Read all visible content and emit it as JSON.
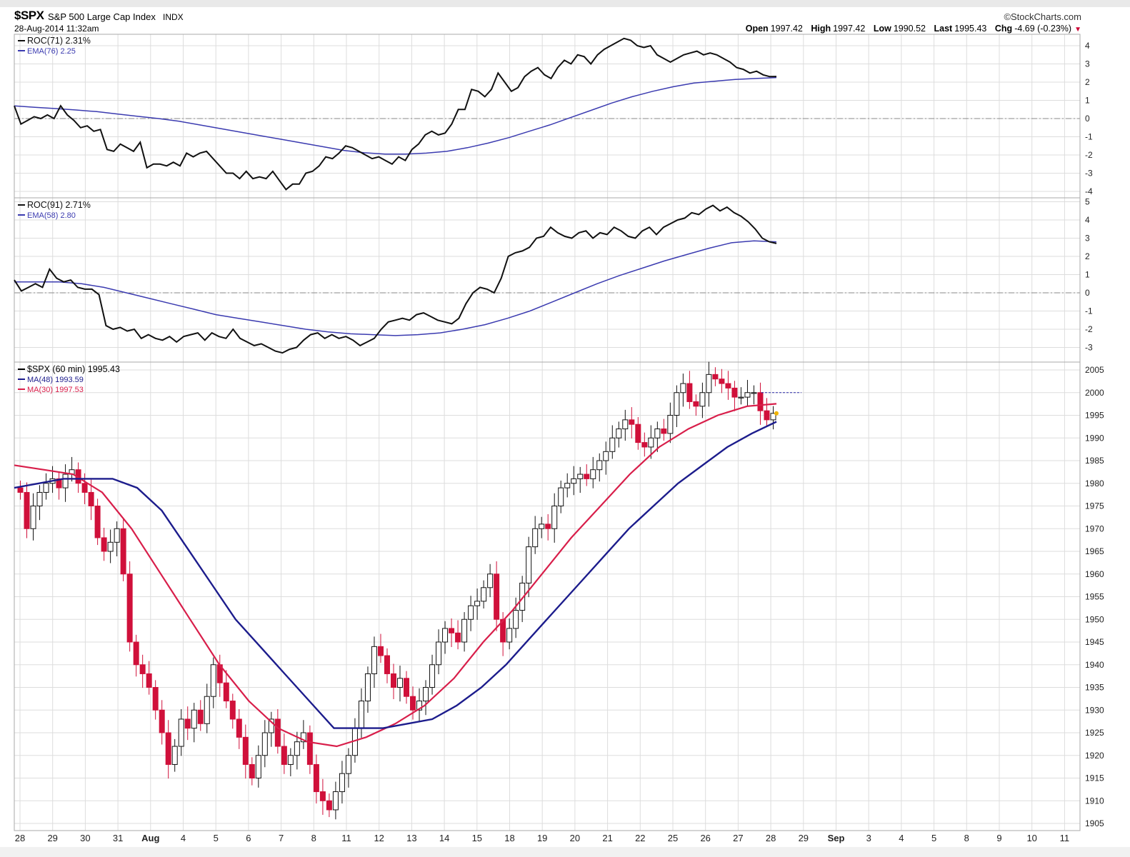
{
  "header": {
    "symbol": "$SPX",
    "name": "S&P 500 Large Cap Index",
    "exchange": "INDX",
    "datetime": "28-Aug-2014 11:32am",
    "brand": "©StockCharts.com",
    "quote": {
      "open_label": "Open",
      "open": "1997.42",
      "high_label": "High",
      "high": "1997.42",
      "low_label": "Low",
      "low": "1990.52",
      "last_label": "Last",
      "last": "1995.43",
      "chg_label": "Chg",
      "chg": "-4.69 (-0.23%)"
    }
  },
  "colors": {
    "roc_line": "#111111",
    "ema_line": "#3b3bb0",
    "ma48": "#1c1c8c",
    "ma30": "#d81e4a",
    "up_candle": "#ffffff",
    "down_candle": "#d0103a",
    "grid": "#dddddd"
  },
  "chart_data": [
    {
      "type": "line",
      "panel": "roc71",
      "legend": [
        {
          "name": "ROC(71) 2.31%",
          "color": "#111111"
        },
        {
          "name": "EMA(76) 2.25",
          "color": "#3b3bb0"
        }
      ],
      "y_ticks": [
        "4",
        "3",
        "2",
        "1",
        "0",
        "-1",
        "-2",
        "-3",
        "-4"
      ],
      "ylim": [
        -4,
        4
      ],
      "series": [
        {
          "name": "ROC(71)",
          "values": [
            0.7,
            -0.3,
            -0.1,
            0.1,
            0.0,
            0.2,
            0.0,
            0.7,
            0.2,
            -0.1,
            -0.5,
            -0.4,
            -0.7,
            -0.6,
            -1.7,
            -1.8,
            -1.4,
            -1.6,
            -1.8,
            -1.3,
            -2.7,
            -2.5,
            -2.5,
            -2.6,
            -2.4,
            -2.6,
            -1.9,
            -2.1,
            -1.9,
            -1.8,
            -2.2,
            -2.6,
            -3.0,
            -3.0,
            -3.3,
            -2.9,
            -3.3,
            -3.2,
            -3.3,
            -2.9,
            -3.4,
            -3.9,
            -3.6,
            -3.6,
            -3.0,
            -2.9,
            -2.6,
            -2.1,
            -2.2,
            -1.9,
            -1.5,
            -1.6,
            -1.8,
            -2.0,
            -2.2,
            -2.1,
            -2.3,
            -2.5,
            -2.1,
            -2.3,
            -1.7,
            -1.4,
            -0.9,
            -0.7,
            -0.9,
            -0.8,
            -0.3,
            0.5,
            0.5,
            1.6,
            1.5,
            1.2,
            1.6,
            2.5,
            2.0,
            1.5,
            1.7,
            2.3,
            2.6,
            2.8,
            2.4,
            2.2,
            2.8,
            3.2,
            3.0,
            3.5,
            3.4,
            3.0,
            3.5,
            3.8,
            4.0,
            4.2,
            4.4,
            4.3,
            4.0,
            3.9,
            4.0,
            3.5,
            3.3,
            3.1,
            3.3,
            3.5,
            3.6,
            3.7,
            3.5,
            3.6,
            3.5,
            3.3,
            3.1,
            2.8,
            2.7,
            2.5,
            2.6,
            2.4,
            2.3,
            2.31
          ]
        },
        {
          "name": "EMA(76)",
          "values": [
            0.7,
            0.62,
            0.55,
            0.47,
            0.38,
            0.25,
            0.12,
            0.0,
            -0.15,
            -0.35,
            -0.55,
            -0.75,
            -0.95,
            -1.15,
            -1.35,
            -1.55,
            -1.75,
            -1.88,
            -1.95,
            -1.95,
            -1.9,
            -1.8,
            -1.6,
            -1.35,
            -1.05,
            -0.7,
            -0.35,
            0.05,
            0.45,
            0.85,
            1.2,
            1.5,
            1.75,
            1.95,
            2.05,
            2.15,
            2.2,
            2.25
          ]
        }
      ]
    },
    {
      "type": "line",
      "panel": "roc91",
      "legend": [
        {
          "name": "ROC(91) 2.71%",
          "color": "#111111"
        },
        {
          "name": "EMA(58) 2.80",
          "color": "#3b3bb0"
        }
      ],
      "y_ticks": [
        "5",
        "4",
        "3",
        "2",
        "1",
        "0",
        "-1",
        "-2",
        "-3"
      ],
      "ylim": [
        -3,
        5
      ],
      "series": [
        {
          "name": "ROC(91)",
          "values": [
            0.7,
            0.1,
            0.3,
            0.5,
            0.3,
            1.3,
            0.8,
            0.6,
            0.7,
            0.3,
            0.2,
            0.2,
            -0.1,
            -1.8,
            -2.0,
            -1.9,
            -2.1,
            -2.0,
            -2.5,
            -2.3,
            -2.5,
            -2.6,
            -2.4,
            -2.7,
            -2.4,
            -2.3,
            -2.2,
            -2.6,
            -2.2,
            -2.4,
            -2.5,
            -2.0,
            -2.5,
            -2.7,
            -2.9,
            -2.8,
            -3.0,
            -3.2,
            -3.3,
            -3.1,
            -3.0,
            -2.6,
            -2.3,
            -2.2,
            -2.5,
            -2.3,
            -2.5,
            -2.4,
            -2.6,
            -2.9,
            -2.7,
            -2.5,
            -2.0,
            -1.6,
            -1.5,
            -1.4,
            -1.5,
            -1.2,
            -1.1,
            -1.3,
            -1.5,
            -1.6,
            -1.7,
            -1.4,
            -0.6,
            0.0,
            0.3,
            0.2,
            0.0,
            0.8,
            2.0,
            2.2,
            2.3,
            2.5,
            3.0,
            3.1,
            3.6,
            3.3,
            3.1,
            3.0,
            3.3,
            3.4,
            3.0,
            3.3,
            3.2,
            3.6,
            3.4,
            3.1,
            3.0,
            3.4,
            3.6,
            3.2,
            3.6,
            3.8,
            4.0,
            4.1,
            4.4,
            4.3,
            4.6,
            4.8,
            4.5,
            4.7,
            4.4,
            4.2,
            3.9,
            3.5,
            3.0,
            2.8,
            2.71
          ]
        },
        {
          "name": "EMA(58)",
          "values": [
            0.6,
            0.6,
            0.6,
            0.5,
            0.3,
            0.0,
            -0.3,
            -0.6,
            -0.9,
            -1.2,
            -1.4,
            -1.6,
            -1.8,
            -2.0,
            -2.15,
            -2.25,
            -2.3,
            -2.35,
            -2.3,
            -2.2,
            -2.0,
            -1.75,
            -1.4,
            -1.0,
            -0.5,
            -0.0,
            0.5,
            0.95,
            1.35,
            1.75,
            2.1,
            2.45,
            2.75,
            2.85,
            2.8
          ]
        }
      ]
    },
    {
      "type": "candlestick",
      "panel": "price",
      "legend": [
        {
          "name": "$SPX (60 min) 1995.43",
          "color": "#000000"
        },
        {
          "name": "MA(48) 1993.59",
          "color": "#1c1c8c"
        },
        {
          "name": "MA(30) 1997.53",
          "color": "#d81e4a"
        }
      ],
      "y_ticks": [
        "2005",
        "2000",
        "1995",
        "1990",
        "1985",
        "1980",
        "1975",
        "1970",
        "1965",
        "1960",
        "1955",
        "1950",
        "1945",
        "1940",
        "1935",
        "1930",
        "1925",
        "1920",
        "1915",
        "1910",
        "1905"
      ],
      "ylim": [
        1905,
        2005
      ],
      "x_ticks": [
        "28",
        "29",
        "30",
        "31",
        "Aug",
        "4",
        "5",
        "6",
        "7",
        "8",
        "11",
        "12",
        "13",
        "14",
        "15",
        "18",
        "19",
        "20",
        "21",
        "22",
        "25",
        "26",
        "27",
        "28",
        "29",
        "Sep",
        "3",
        "4",
        "5",
        "8",
        "9",
        "10",
        "11"
      ],
      "close": [
        1978,
        1970,
        1975,
        1978,
        1980,
        1981,
        1979,
        1982,
        1983,
        1980,
        1978,
        1975,
        1968,
        1965,
        1967,
        1970,
        1960,
        1945,
        1940,
        1938,
        1935,
        1930,
        1925,
        1918,
        1922,
        1928,
        1926,
        1930,
        1927,
        1933,
        1940,
        1936,
        1932,
        1928,
        1924,
        1918,
        1915,
        1920,
        1925,
        1928,
        1922,
        1918,
        1920,
        1923,
        1925,
        1918,
        1912,
        1910,
        1908,
        1912,
        1916,
        1920,
        1926,
        1932,
        1938,
        1944,
        1942,
        1938,
        1935,
        1937,
        1933,
        1930,
        1932,
        1935,
        1940,
        1945,
        1948,
        1947,
        1945,
        1950,
        1953,
        1954,
        1957,
        1960,
        1950,
        1945,
        1948,
        1952,
        1958,
        1966,
        1970,
        1971,
        1970,
        1975,
        1979,
        1980,
        1981,
        1982,
        1981,
        1983,
        1985,
        1987,
        1990,
        1992,
        1994,
        1993,
        1989,
        1988,
        1990,
        1992,
        1991,
        1995,
        2000,
        2002,
        1998,
        1997,
        2000,
        2004,
        2003,
        2002,
        2001,
        1999,
        1999,
        2000,
        2000,
        1996,
        1994,
        1995.43
      ],
      "ma48": [
        1979,
        1980,
        1981,
        1981,
        1981,
        1979,
        1974,
        1966,
        1958,
        1950,
        1944,
        1938,
        1932,
        1926,
        1926,
        1926,
        1927,
        1928,
        1931,
        1935,
        1940,
        1946,
        1952,
        1958,
        1964,
        1970,
        1975,
        1980,
        1984,
        1988,
        1991,
        1993.59
      ],
      "ma30": [
        1984,
        1983,
        1982,
        1978,
        1970,
        1960,
        1950,
        1940,
        1932,
        1926,
        1923,
        1922,
        1924,
        1927,
        1931,
        1937,
        1945,
        1952,
        1960,
        1968,
        1975,
        1982,
        1988,
        1992,
        1995,
        1997,
        1997.53
      ],
      "last_value_dotted": 2000
    }
  ]
}
